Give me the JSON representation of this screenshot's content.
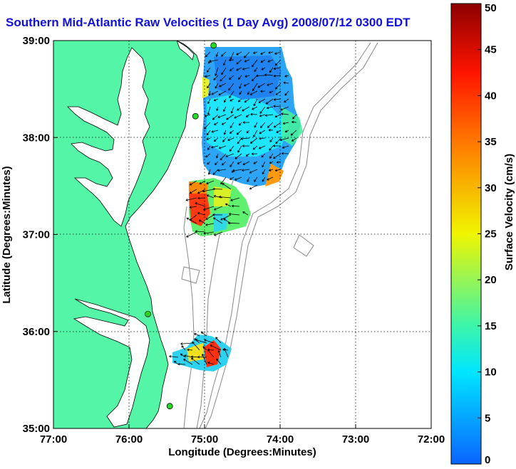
{
  "title": "Southern Mid-Atlantic Raw Velocities (1 Day Avg) 2008/07/12 0300 EDT",
  "colors": {
    "land": "#55f5a8",
    "title": "#1010e0",
    "station": "#22dd22",
    "contour": "#888888"
  },
  "chart_data": {
    "type": "map",
    "xlabel": "Longitude (Degrees:Minutes)",
    "ylabel": "Latitude (Degrees:Minutes)",
    "x_range": [
      -77,
      -72
    ],
    "y_range": [
      35,
      39
    ],
    "x_ticks": [
      {
        "value": -77,
        "label": "77:00"
      },
      {
        "value": -76,
        "label": "76:00"
      },
      {
        "value": -75,
        "label": "75:00"
      },
      {
        "value": -74,
        "label": "74:00"
      },
      {
        "value": -73,
        "label": "73:00"
      },
      {
        "value": -72,
        "label": "72:00"
      }
    ],
    "y_ticks": [
      {
        "value": 39,
        "label": "39:00"
      },
      {
        "value": 38,
        "label": "38:00"
      },
      {
        "value": 37,
        "label": "37:00"
      },
      {
        "value": 36,
        "label": "36:00"
      },
      {
        "value": 35,
        "label": "35:00"
      }
    ],
    "grid": true,
    "colorbar": {
      "label": "Surface Velocity (cm/s)",
      "range": [
        0,
        50
      ],
      "ticks": [
        0,
        5,
        10,
        15,
        20,
        25,
        30,
        35,
        40,
        45,
        50
      ]
    },
    "stations": [
      {
        "lon": -74.88,
        "lat": 38.95
      },
      {
        "lon": -75.12,
        "lat": 38.22
      },
      {
        "lon": -75.75,
        "lat": 36.18
      },
      {
        "lon": -75.46,
        "lat": 35.23
      }
    ]
  }
}
